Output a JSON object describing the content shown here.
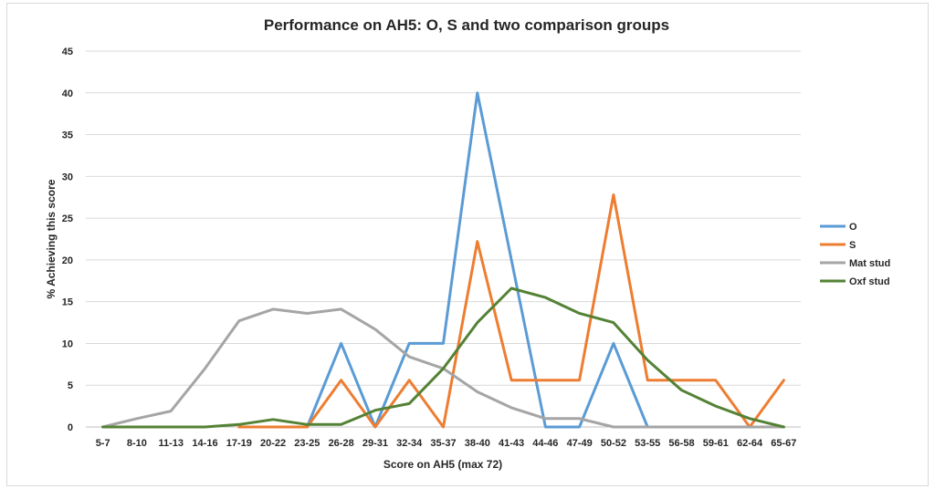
{
  "chart_data": {
    "type": "line",
    "title": "Performance on AH5: O, S and two comparison groups",
    "xlabel": "Score on AH5 (max 72)",
    "ylabel": "% Achieving this score",
    "ylim": [
      0,
      45
    ],
    "yticks": [
      0,
      5,
      10,
      15,
      20,
      25,
      30,
      35,
      40,
      45
    ],
    "grid": true,
    "legend_position": "right",
    "categories": [
      "5-7",
      "8-10",
      "11-13",
      "14-16",
      "17-19",
      "20-22",
      "23-25",
      "26-28",
      "29-31",
      "32-34",
      "35-37",
      "38-40",
      "41-43",
      "44-46",
      "47-49",
      "50-52",
      "53-55",
      "56-58",
      "59-61",
      "62-64",
      "65-67"
    ],
    "series": [
      {
        "name": "O",
        "color": "#5b9bd5",
        "values": [
          null,
          null,
          null,
          null,
          null,
          null,
          0,
          10,
          0,
          10,
          10,
          40,
          20,
          0,
          0,
          10,
          0,
          null,
          null,
          null,
          null
        ]
      },
      {
        "name": "S",
        "color": "#ed7d31",
        "values": [
          null,
          null,
          null,
          null,
          0,
          0,
          0,
          5.6,
          0,
          5.6,
          0,
          22.2,
          5.6,
          5.6,
          5.6,
          27.8,
          5.6,
          5.6,
          5.6,
          0,
          5.6
        ]
      },
      {
        "name": "Mat stud",
        "color": "#a5a5a5",
        "values": [
          0,
          1,
          1.9,
          7,
          12.7,
          14.1,
          13.6,
          14.1,
          11.7,
          8.4,
          7,
          4.2,
          2.3,
          1,
          1,
          0,
          0,
          0,
          0,
          0,
          0
        ]
      },
      {
        "name": "Oxf stud",
        "color": "#548235",
        "values": [
          0,
          0,
          0,
          0,
          0.3,
          0.9,
          0.3,
          0.3,
          2,
          2.8,
          7,
          12.5,
          16.6,
          15.5,
          13.6,
          12.5,
          8,
          4.4,
          2.5,
          1,
          0
        ]
      }
    ]
  }
}
